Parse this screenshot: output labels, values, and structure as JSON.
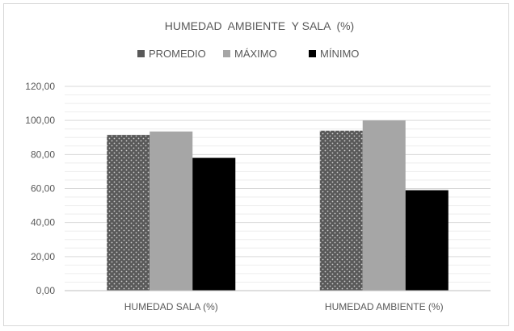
{
  "chart_data": {
    "type": "bar",
    "title": "HUMEDAD  AMBIENTE  Y SALA  (%)",
    "categories": [
      "HUMEDAD SALA (%)",
      "HUMEDAD AMBIENTE (%)"
    ],
    "series": [
      {
        "name": "PROMEDIO",
        "values": [
          91.5,
          94.0
        ],
        "color": "#595959",
        "pattern": "dotted"
      },
      {
        "name": "MÁXIMO",
        "values": [
          93.5,
          100.0
        ],
        "color": "#a6a6a6",
        "pattern": "solid"
      },
      {
        "name": "MÍNIMO",
        "values": [
          78.0,
          59.0
        ],
        "color": "#000000",
        "pattern": "solid"
      }
    ],
    "ylim": [
      0,
      120
    ],
    "yticks": [
      "0,00",
      "20,00",
      "40,00",
      "60,00",
      "80,00",
      "100,00",
      "120,00"
    ],
    "grid": true,
    "legend_position": "top"
  }
}
